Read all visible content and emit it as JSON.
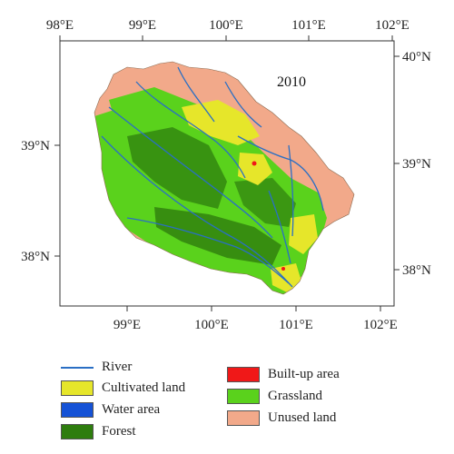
{
  "map": {
    "year": "2010",
    "axis_top": [
      "98°E",
      "99°E",
      "100°E",
      "101°E",
      "102°E"
    ],
    "axis_bottom": [
      "99°E",
      "100°E",
      "101°E",
      "102°E"
    ],
    "axis_left": [
      "39°N",
      "38°N"
    ],
    "axis_right": [
      "40°N",
      "39°N",
      "38°N"
    ]
  },
  "legend": {
    "items": [
      {
        "label": "River",
        "type": "line",
        "color": "#2a6fc4"
      },
      {
        "label": "Cultivated land",
        "type": "fill",
        "color": "#e6e62a"
      },
      {
        "label": "Water area",
        "type": "fill",
        "color": "#1552d6"
      },
      {
        "label": "Forest",
        "type": "fill",
        "color": "#2e7d0e"
      },
      {
        "label": "Built-up area",
        "type": "fill",
        "color": "#f01818"
      },
      {
        "label": "Grassland",
        "type": "fill",
        "color": "#5ad21c"
      },
      {
        "label": "Unused land",
        "type": "fill",
        "color": "#f2a98a"
      }
    ]
  },
  "colors": {
    "cultivated": "#e6e62a",
    "water": "#1552d6",
    "forest": "#2e7d0e",
    "builtup": "#f01818",
    "grassland": "#5ad21c",
    "unused": "#f2a98a",
    "river": "#2a6fc4"
  }
}
